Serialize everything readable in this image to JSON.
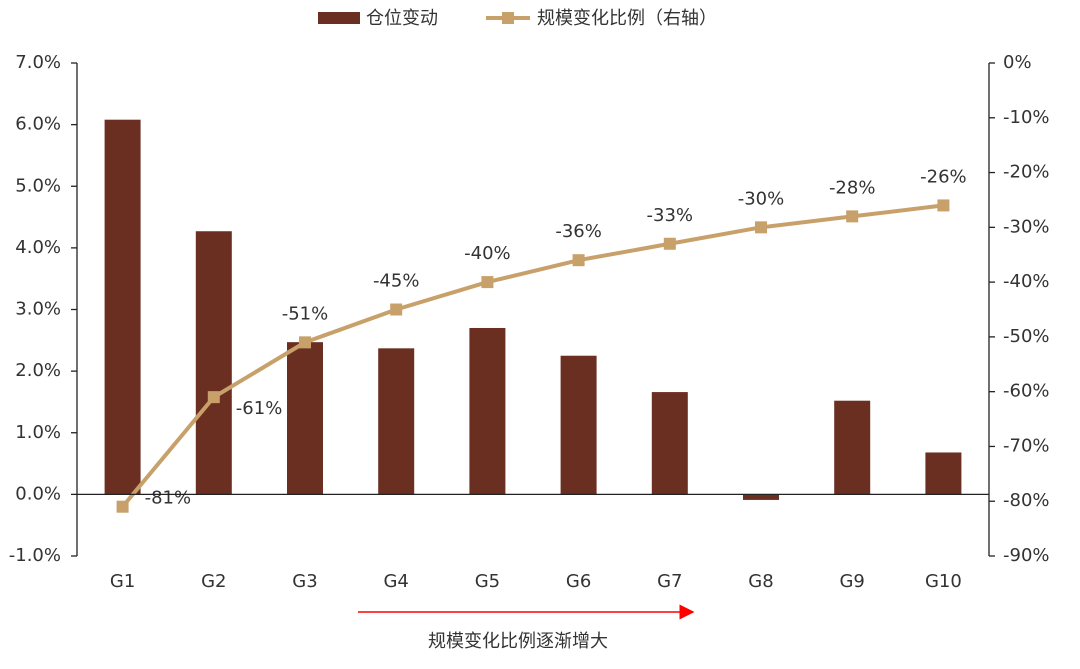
{
  "chart_data": {
    "type": "bar_line",
    "categories": [
      "G1",
      "G2",
      "G3",
      "G4",
      "G5",
      "G6",
      "G7",
      "G8",
      "G9",
      "G10"
    ],
    "series": [
      {
        "name": "仓位变动",
        "type": "bar",
        "color": "#6b2f22",
        "values": [
          6.08,
          4.27,
          2.47,
          2.37,
          2.7,
          2.25,
          1.66,
          -0.09,
          1.52,
          0.68
        ]
      },
      {
        "name": "规模变化比例（右轴）",
        "type": "line",
        "axis": "y2",
        "color": "#c8a06a",
        "values": [
          -81,
          -61,
          -51,
          -45,
          -40,
          -36,
          -33,
          -30,
          -28,
          -26
        ],
        "value_labels": [
          "-81%",
          "-61%",
          "-51%",
          "-45%",
          "-40%",
          "-36%",
          "-33%",
          "-30%",
          "-28%",
          "-26%"
        ]
      }
    ],
    "ylim": [
      -1,
      7
    ],
    "yticks": [
      {
        "value": -1,
        "label": "-1.0%"
      },
      {
        "value": 0,
        "label": "0.0%"
      },
      {
        "value": 1,
        "label": "1.0%"
      },
      {
        "value": 2,
        "label": "2.0%"
      },
      {
        "value": 3,
        "label": "3.0%"
      },
      {
        "value": 4,
        "label": "4.0%"
      },
      {
        "value": 5,
        "label": "5.0%"
      },
      {
        "value": 6,
        "label": "6.0%"
      },
      {
        "value": 7,
        "label": "7.0%"
      }
    ],
    "y2lim": [
      -90,
      0
    ],
    "y2ticks": [
      {
        "value": -90,
        "label": "-90%"
      },
      {
        "value": -80,
        "label": "-80%"
      },
      {
        "value": -70,
        "label": "-70%"
      },
      {
        "value": -60,
        "label": "-60%"
      },
      {
        "value": -50,
        "label": "-50%"
      },
      {
        "value": -40,
        "label": "-40%"
      },
      {
        "value": -30,
        "label": "-30%"
      },
      {
        "value": -20,
        "label": "-20%"
      },
      {
        "value": -10,
        "label": "-10%"
      },
      {
        "value": 0,
        "label": "0%"
      }
    ],
    "annotation": "规模变化比例逐渐增大",
    "legend": "top",
    "grid": false
  }
}
